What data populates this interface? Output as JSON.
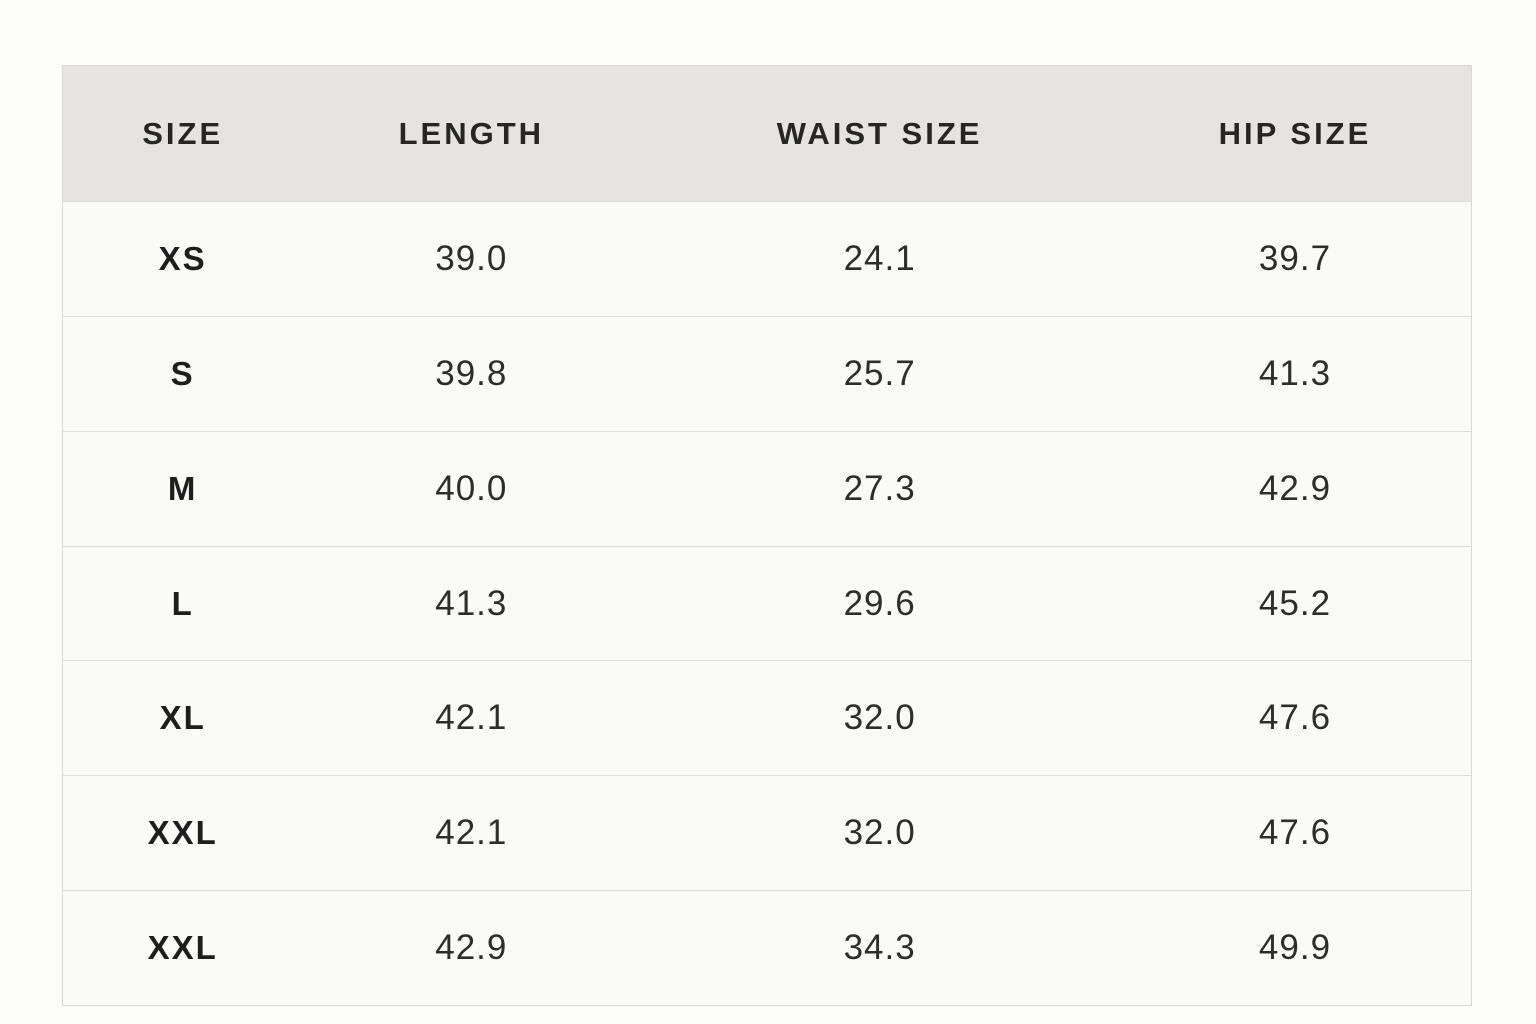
{
  "colors": {
    "page_background": "#fcfcfb",
    "header_background": "#e5e4e2",
    "row_background": "#fafaf9",
    "divider": "#dededc",
    "text": "#262626"
  },
  "chart_data": {
    "type": "table",
    "columns": [
      "SIZE",
      "LENGTH",
      "WAIST SIZE",
      "HIP SIZE"
    ],
    "rows": [
      [
        "XS",
        "39.0",
        "24.1",
        "39.7"
      ],
      [
        "S",
        "39.8",
        "25.7",
        "41.3"
      ],
      [
        "M",
        "40.0",
        "27.3",
        "42.9"
      ],
      [
        "L",
        "41.3",
        "29.6",
        "45.2"
      ],
      [
        "XL",
        "42.1",
        "32.0",
        "47.6"
      ],
      [
        "XXL",
        "42.1",
        "32.0",
        "47.6"
      ],
      [
        "XXL",
        "42.9",
        "34.3",
        "49.9"
      ]
    ]
  }
}
